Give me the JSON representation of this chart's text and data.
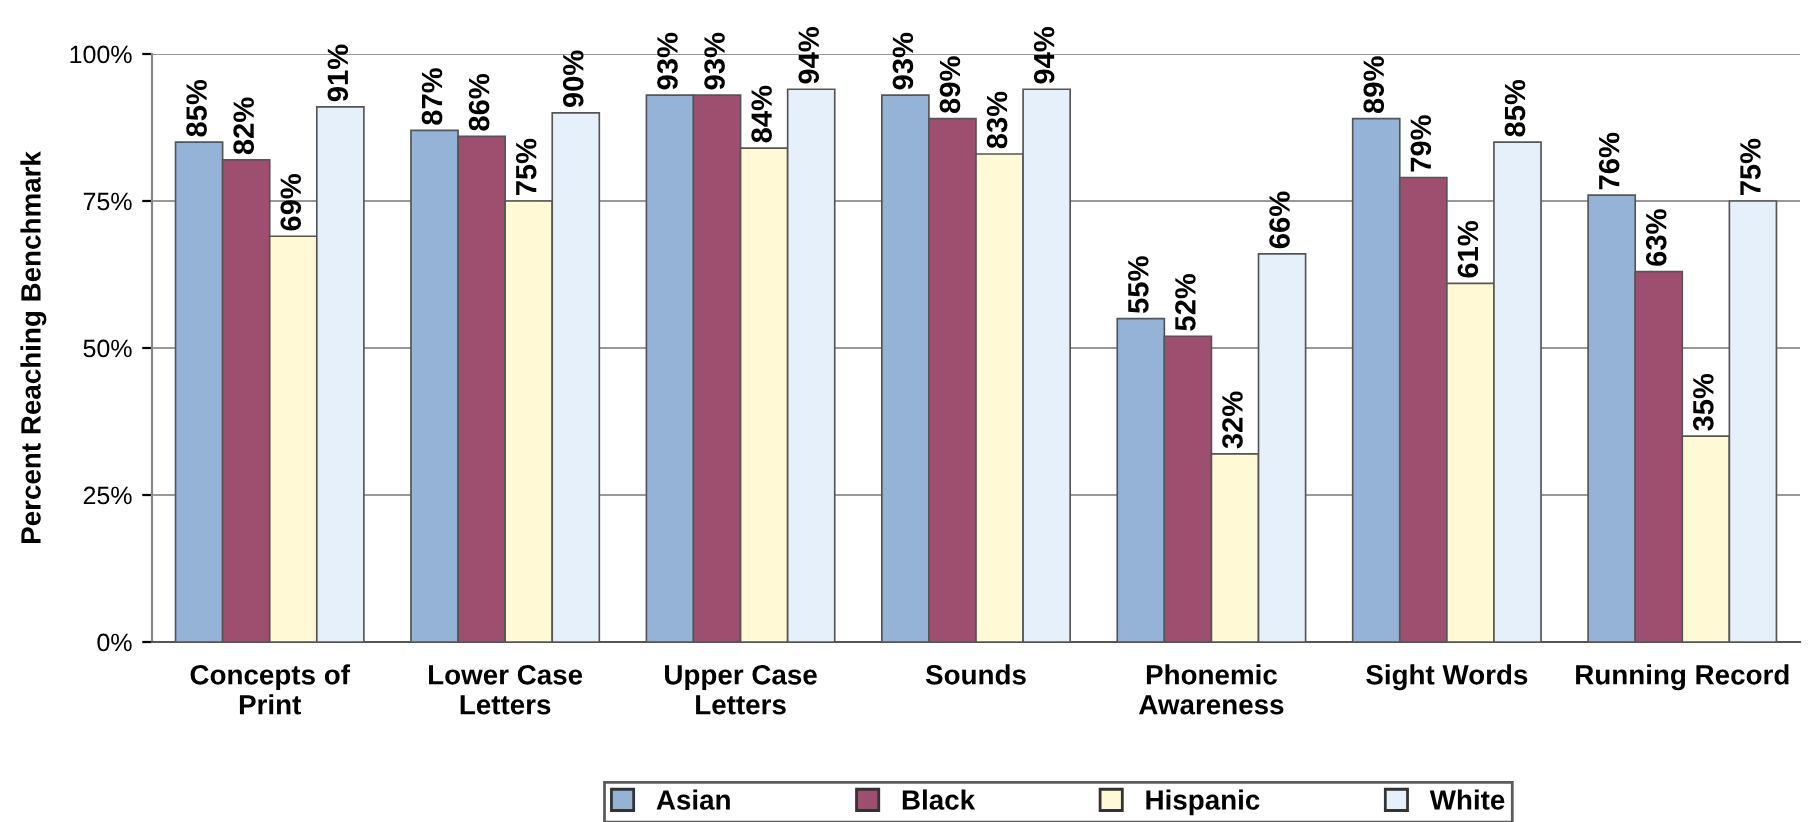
{
  "chart_data": {
    "type": "bar",
    "ylabel": "Percent Reaching Benchmark",
    "categories": [
      "Concepts of\nPrint",
      "Lower Case\nLetters",
      "Upper Case\nLetters",
      "Sounds",
      "Phonemic\nAwareness",
      "Sight Words",
      "Running Record"
    ],
    "series": [
      {
        "name": "Asian",
        "color": "#95b3d7",
        "values": [
          85,
          87,
          93,
          93,
          55,
          89,
          76
        ],
        "value_labels": [
          "85%",
          "87%",
          "93%",
          "93%",
          "55%",
          "89%",
          "76%"
        ]
      },
      {
        "name": "Black",
        "color": "#9e4f70",
        "values": [
          82,
          86,
          93,
          89,
          52,
          79,
          63
        ],
        "value_labels": [
          "82%",
          "86%",
          "93%",
          "89%",
          "52%",
          "79%",
          "63%"
        ]
      },
      {
        "name": "Hispanic",
        "color": "#fff9d6",
        "values": [
          69,
          75,
          84,
          83,
          32,
          61,
          35
        ],
        "value_labels": [
          "69%",
          "75%",
          "84%",
          "83%",
          "32%",
          "61%",
          "35%"
        ]
      },
      {
        "name": "White",
        "color": "#e6f0fb",
        "values": [
          91,
          90,
          94,
          94,
          66,
          85,
          75
        ],
        "value_labels": [
          "91%",
          "90%",
          "94%",
          "94%",
          "66%",
          "85%",
          "75%"
        ]
      }
    ],
    "ylim": [
      0,
      100
    ],
    "yticks": [
      {
        "value": 0,
        "label": "0%"
      },
      {
        "value": 25,
        "label": "25%"
      },
      {
        "value": 50,
        "label": "50%"
      },
      {
        "value": 75,
        "label": "75%"
      },
      {
        "value": 100,
        "label": "100%"
      }
    ],
    "grid": "y",
    "legend": "bottom"
  }
}
